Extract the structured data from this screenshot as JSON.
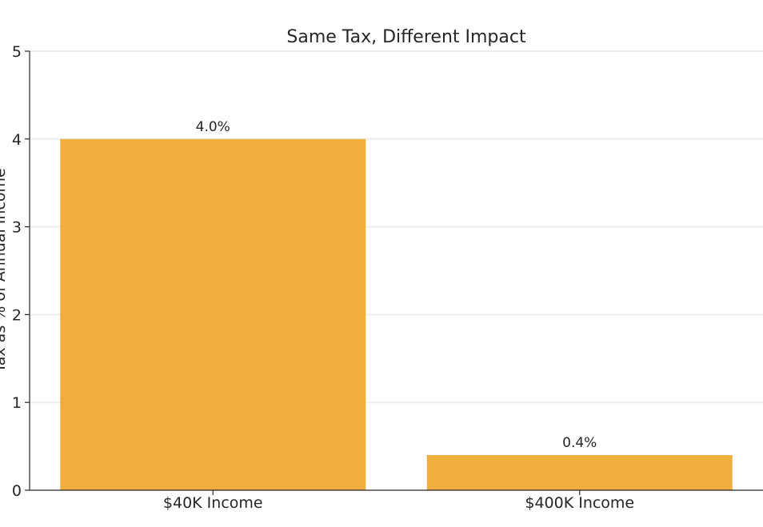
{
  "chart_data": {
    "type": "bar",
    "title": "Same Tax, Different Impact",
    "xlabel": "",
    "ylabel": "Tax as % of Annual Income",
    "categories": [
      "$40K Income",
      "$400K Income"
    ],
    "values": [
      4.0,
      0.4
    ],
    "data_labels": [
      "4.0%",
      "0.4%"
    ],
    "ylim": [
      0,
      5
    ],
    "yticks": [
      "0",
      "1",
      "2",
      "3",
      "4",
      "5"
    ],
    "grid": true,
    "bar_color": "#F0AE3C",
    "grid_color": "#EEEEEE",
    "axis_color": "#262626"
  }
}
